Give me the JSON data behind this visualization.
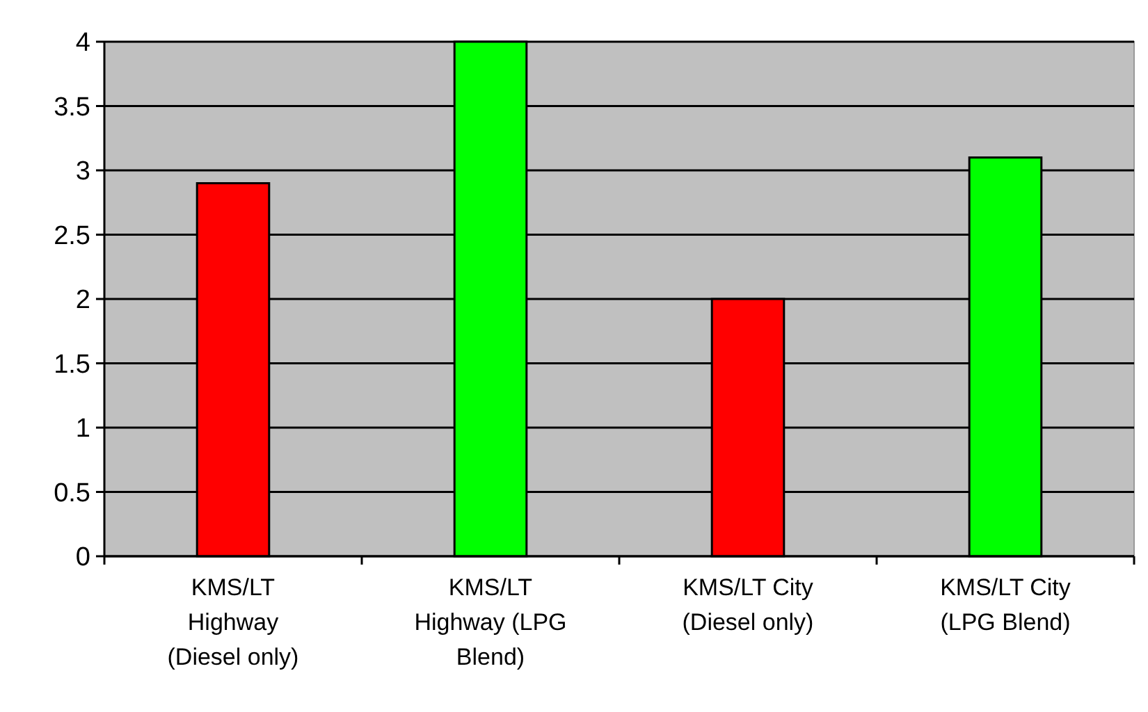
{
  "chart_data": {
    "type": "bar",
    "categories": [
      "KMS/LT Highway (Diesel only)",
      "KMS/LT Highway (LPG Blend)",
      "KMS/LT City (Diesel only)",
      "KMS/LT City (LPG Blend)"
    ],
    "values": [
      2.9,
      4.0,
      2.0,
      3.1
    ],
    "colors": [
      "#ff0000",
      "#00ff00",
      "#ff0000",
      "#00ff00"
    ],
    "ylim": [
      0,
      4
    ],
    "yticks": [
      0,
      0.5,
      1,
      1.5,
      2,
      2.5,
      3,
      3.5,
      4
    ],
    "grid": "y"
  }
}
